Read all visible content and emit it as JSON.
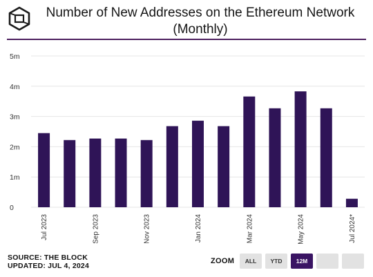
{
  "header": {
    "title_line1": "Number of New Addresses on the Ethereum Network",
    "title_line2": "(Monthly)"
  },
  "footer": {
    "source": "SOURCE: THE BLOCK",
    "updated": "UPDATED: JUL 4, 2024"
  },
  "zoom": {
    "label": "ZOOM",
    "buttons": [
      {
        "label": "ALL",
        "active": false
      },
      {
        "label": "YTD",
        "active": false
      },
      {
        "label": "12M",
        "active": true
      },
      {
        "label": "",
        "active": false
      },
      {
        "label": "",
        "active": false
      }
    ]
  },
  "colors": {
    "bar": "#2f1457",
    "rule": "#4b1d5e",
    "grid": "#e6e6e6",
    "zoom_active": "#3a1463",
    "zoom_inactive": "#e2e2e2"
  },
  "chart_data": {
    "type": "bar",
    "title": "Number of New Addresses on the Ethereum Network (Monthly)",
    "categories": [
      "Jul 2023",
      "Aug 2023",
      "Sep 2023",
      "Oct 2023",
      "Nov 2023",
      "Dec 2023",
      "Jan 2024",
      "Feb 2024",
      "Mar 2024",
      "Apr 2024",
      "May 2024",
      "Jun 2024",
      "Jul 2024*"
    ],
    "tick_labels": [
      "Jul 2023",
      "",
      "Sep 2023",
      "",
      "Nov 2023",
      "",
      "Jan 2024",
      "",
      "Mar 2024",
      "",
      "May 2024",
      "",
      "Jul 2024*"
    ],
    "values": [
      2450000,
      2220000,
      2270000,
      2270000,
      2220000,
      2680000,
      2860000,
      2680000,
      3660000,
      3270000,
      3830000,
      3270000,
      280000
    ],
    "ylim": [
      0,
      5000000
    ],
    "yticks": [
      0,
      1000000,
      2000000,
      3000000,
      4000000,
      5000000
    ],
    "ytick_labels": [
      "0",
      "1m",
      "2m",
      "3m",
      "4m",
      "5m"
    ],
    "grid": true,
    "legend": "none"
  }
}
